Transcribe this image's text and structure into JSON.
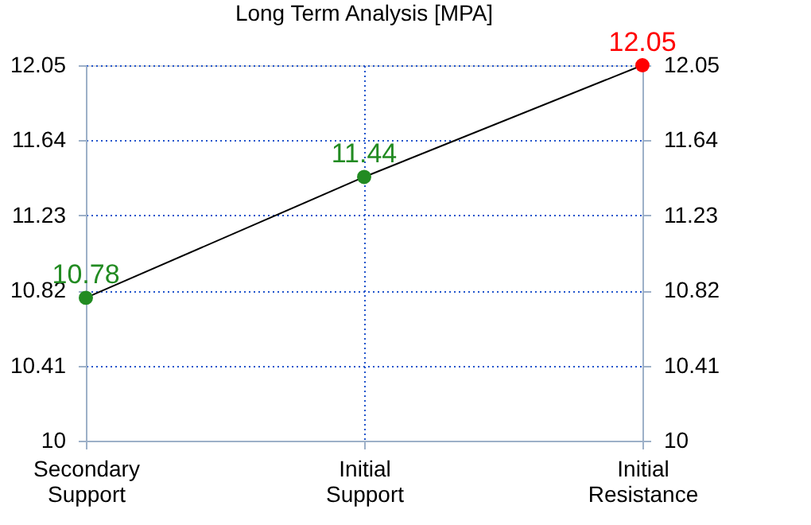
{
  "chart_data": {
    "type": "line",
    "title": "Long Term Analysis [MPA]",
    "categories": [
      "Secondary Support",
      "Initial Support",
      "Initial Resistance"
    ],
    "series": [
      {
        "color": "#000000",
        "colors": [
          "#228b22",
          "#228b22",
          "#ff0000"
        ],
        "values": [
          10.78,
          11.44,
          12.05
        ]
      }
    ],
    "ylim": [
      10,
      12.05
    ],
    "yticks": [
      10,
      10.41,
      10.82,
      11.23,
      11.64,
      12.05
    ],
    "y2lim": [
      10,
      12.05
    ],
    "y2ticks": [
      10,
      10.41,
      10.82,
      11.23,
      11.64,
      12.05
    ],
    "grid": true,
    "marker": "circle",
    "line_style": "solid",
    "data_labels": true,
    "legend": false
  }
}
